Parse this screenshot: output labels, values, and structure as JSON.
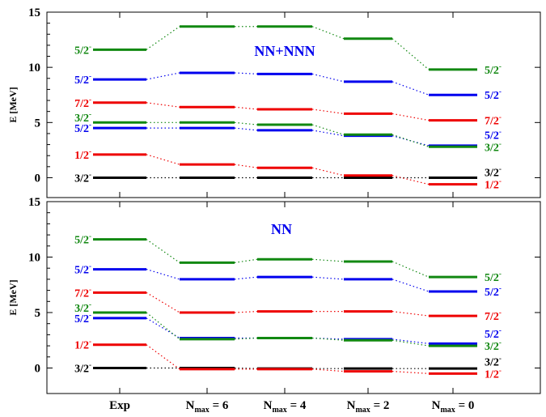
{
  "colors": {
    "black": "#000000",
    "red": "#ee0000",
    "blue": "#0000ee",
    "green": "#118811"
  },
  "chart_data": [
    {
      "type": "level-scheme",
      "title": "NN+NNN",
      "ylabel": "E [MeV]",
      "ylim": [
        -1.8,
        15
      ],
      "yticks": [
        "0",
        "5",
        "10",
        "15"
      ],
      "categories": [
        "Exp",
        "N_max = 6",
        "N_max = 4",
        "N_max = 2",
        "N_max = 0"
      ],
      "series": [
        {
          "color": "black",
          "values": [
            0,
            0,
            0,
            0,
            0
          ],
          "left_label": "3/2",
          "right_label": "3/2"
        },
        {
          "color": "red",
          "values": [
            2.1,
            1.2,
            0.9,
            0.2,
            -0.6
          ],
          "left_label": "1/2",
          "right_label": "1/2"
        },
        {
          "color": "blue",
          "values": [
            4.5,
            4.5,
            4.3,
            3.8,
            2.9
          ],
          "left_label": "5/2",
          "right_label": "5/2"
        },
        {
          "color": "green",
          "values": [
            5.0,
            5.0,
            4.8,
            3.9,
            2.8
          ],
          "left_label": "3/2",
          "right_label": "3/2"
        },
        {
          "color": "red",
          "values": [
            6.8,
            6.4,
            6.2,
            5.8,
            5.2
          ],
          "left_label": "7/2",
          "right_label": "7/2"
        },
        {
          "color": "blue",
          "values": [
            8.9,
            9.5,
            9.4,
            8.7,
            7.5
          ],
          "left_label": "5/2",
          "right_label": "5/2"
        },
        {
          "color": "green",
          "values": [
            11.6,
            13.7,
            13.7,
            12.6,
            9.8
          ],
          "left_label": "5/2",
          "right_label": "5/2"
        }
      ]
    },
    {
      "type": "level-scheme",
      "title": "NN",
      "ylabel": "E [MeV]",
      "ylim": [
        -2.3,
        15
      ],
      "yticks": [
        "0",
        "5",
        "10",
        "15"
      ],
      "categories": [
        "Exp",
        "N_max = 6",
        "N_max = 4",
        "N_max = 2",
        "N_max = 0"
      ],
      "series": [
        {
          "color": "black",
          "values": [
            0,
            0,
            -0.05,
            -0.05,
            -0.05
          ],
          "left_label": "3/2",
          "right_label": "3/2"
        },
        {
          "color": "red",
          "values": [
            2.1,
            -0.1,
            -0.1,
            -0.3,
            -0.5
          ],
          "left_label": "1/2",
          "right_label": "1/2"
        },
        {
          "color": "blue",
          "values": [
            4.5,
            2.7,
            2.7,
            2.6,
            2.2
          ],
          "left_label": "5/2",
          "right_label": "5/2"
        },
        {
          "color": "green",
          "values": [
            5.0,
            2.6,
            2.7,
            2.5,
            2.0
          ],
          "left_label": "3/2",
          "right_label": "3/2"
        },
        {
          "color": "red",
          "values": [
            6.8,
            5.0,
            5.1,
            5.1,
            4.7
          ],
          "left_label": "7/2",
          "right_label": "7/2"
        },
        {
          "color": "blue",
          "values": [
            8.9,
            8.0,
            8.2,
            8.0,
            6.9
          ],
          "left_label": "5/2",
          "right_label": "5/2"
        },
        {
          "color": "green",
          "values": [
            11.6,
            9.5,
            9.8,
            9.6,
            8.2
          ],
          "left_label": "5/2",
          "right_label": "5/2"
        }
      ]
    }
  ]
}
